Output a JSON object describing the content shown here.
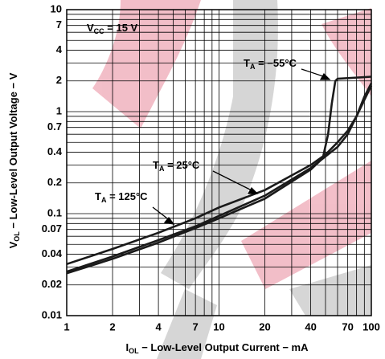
{
  "chart_data": {
    "type": "line",
    "xlog": true,
    "ylog": true,
    "grid": true,
    "xlim": [
      1,
      100
    ],
    "ylim": [
      0.01,
      10
    ],
    "xticks": [
      1,
      2,
      4,
      7,
      10,
      20,
      40,
      70,
      100
    ],
    "yticks": [
      0.01,
      0.02,
      0.04,
      0.07,
      0.1,
      0.2,
      0.4,
      0.7,
      1,
      2,
      4,
      7,
      10
    ],
    "x_minor_grid": [
      3,
      5,
      6,
      8,
      9,
      30,
      50,
      60,
      80,
      90
    ],
    "y_minor_grid": [
      0.03,
      0.05,
      0.06,
      0.08,
      0.09,
      0.3,
      0.5,
      0.6,
      0.8,
      0.9,
      3,
      5,
      6,
      8,
      9
    ],
    "x_label": {
      "main": "I",
      "sub": "OL",
      "rest": " − Low-Level Output Current − mA"
    },
    "y_label": {
      "main": "V",
      "sub": "OL",
      "rest": " − Low-Level Output Voltage − V"
    },
    "annotation": {
      "main": "V",
      "sub": "CC",
      "rest": " = 15 V"
    },
    "series": [
      {
        "label": {
          "main": "T",
          "sub": "A",
          "rest": " = 125°C"
        },
        "color": "#1a1a1a",
        "x": [
          1,
          2,
          4,
          7,
          10,
          20,
          40,
          50,
          60,
          70,
          80,
          90,
          100
        ],
        "values": [
          0.032,
          0.045,
          0.065,
          0.09,
          0.115,
          0.17,
          0.3,
          0.38,
          0.5,
          0.65,
          0.9,
          1.3,
          1.8
        ]
      },
      {
        "label": {
          "main": "T",
          "sub": "A",
          "rest": " = 25°C"
        },
        "color": "#1a1a1a",
        "x": [
          1,
          2,
          4,
          7,
          10,
          20,
          40,
          60,
          70,
          80,
          90,
          100
        ],
        "values": [
          0.027,
          0.038,
          0.055,
          0.075,
          0.095,
          0.15,
          0.28,
          0.45,
          0.6,
          0.9,
          1.4,
          1.9
        ]
      },
      {
        "label": {
          "main": "T",
          "sub": "A",
          "rest": " = −55°C"
        },
        "color": "#1a1a1a",
        "x": [
          1,
          2,
          4,
          7,
          10,
          20,
          40,
          48,
          52,
          55,
          58,
          60,
          100
        ],
        "values": [
          0.026,
          0.036,
          0.052,
          0.072,
          0.09,
          0.14,
          0.27,
          0.35,
          0.6,
          1.2,
          2.0,
          2.1,
          2.2
        ]
      }
    ]
  }
}
